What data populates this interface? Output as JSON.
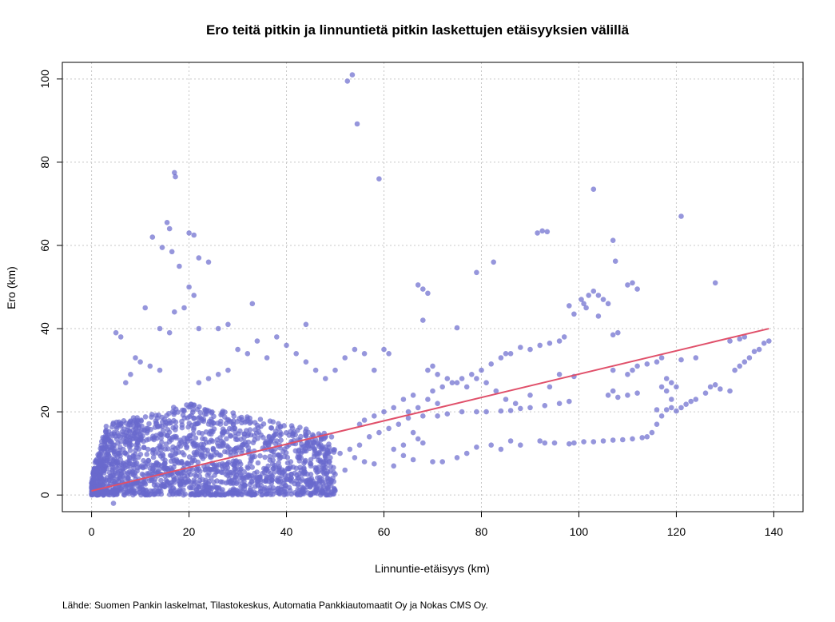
{
  "title": "Ero teitä pitkin ja linnuntietä pitkin laskettujen etäisyyksien välillä",
  "source": "Lähde: Suomen Pankin laskelmat, Tilastokeskus, Automatia Pankkiautomaatit Oy ja Nokas CMS Oy.",
  "colors": {
    "points": "#6a6acd",
    "trend": "#e0506a"
  },
  "chart_data": {
    "type": "scatter",
    "xlabel": "Linnuntie-etäisyys (km)",
    "ylabel": "Ero (km)",
    "xlim": [
      -6,
      146
    ],
    "ylim": [
      -4,
      104
    ],
    "xticks": [
      0,
      20,
      40,
      60,
      80,
      100,
      120,
      140
    ],
    "yticks": [
      0,
      20,
      40,
      60,
      80,
      100
    ],
    "grid": true,
    "trend_line": {
      "x": [
        0,
        139
      ],
      "y": [
        1,
        40
      ]
    },
    "dense_cloud": {
      "x_range": [
        0,
        50
      ],
      "y_range": [
        0,
        22
      ],
      "note_count": 1800
    },
    "points": [
      [
        52.5,
        99.5
      ],
      [
        53.5,
        101
      ],
      [
        54.5,
        89.2
      ],
      [
        59,
        76
      ],
      [
        17,
        77.5
      ],
      [
        17.2,
        76.5
      ],
      [
        12.5,
        62
      ],
      [
        14.5,
        59.5
      ],
      [
        16.5,
        58.5
      ],
      [
        15.5,
        65.5
      ],
      [
        16,
        64
      ],
      [
        20,
        63
      ],
      [
        21,
        62.5
      ],
      [
        18,
        55
      ],
      [
        22,
        57
      ],
      [
        24,
        56
      ],
      [
        20,
        50
      ],
      [
        19,
        45
      ],
      [
        17,
        44
      ],
      [
        21,
        48
      ],
      [
        33,
        46
      ],
      [
        11,
        45
      ],
      [
        14,
        40
      ],
      [
        16,
        39
      ],
      [
        22,
        40
      ],
      [
        26,
        40
      ],
      [
        28,
        41
      ],
      [
        44,
        41
      ],
      [
        38,
        38
      ],
      [
        40,
        36
      ],
      [
        42,
        34
      ],
      [
        44,
        32
      ],
      [
        46,
        30
      ],
      [
        48,
        28
      ],
      [
        50,
        30
      ],
      [
        52,
        33
      ],
      [
        54,
        35
      ],
      [
        56,
        34
      ],
      [
        58,
        30
      ],
      [
        60,
        35
      ],
      [
        61,
        34
      ],
      [
        5,
        39
      ],
      [
        6,
        38
      ],
      [
        67,
        50.5
      ],
      [
        68,
        49.5
      ],
      [
        69,
        48.5
      ],
      [
        68,
        42
      ],
      [
        75,
        40.2
      ],
      [
        79,
        53.5
      ],
      [
        82.5,
        56
      ],
      [
        91.5,
        63
      ],
      [
        92.5,
        63.5
      ],
      [
        93.5,
        63.3
      ],
      [
        103,
        73.5
      ],
      [
        107,
        61.2
      ],
      [
        107.5,
        56.2
      ],
      [
        110,
        50.5
      ],
      [
        111,
        51
      ],
      [
        112,
        49.5
      ],
      [
        121,
        67
      ],
      [
        128,
        51
      ],
      [
        100.5,
        47
      ],
      [
        101,
        46
      ],
      [
        101.5,
        45
      ],
      [
        102,
        48
      ],
      [
        103,
        49
      ],
      [
        104,
        48
      ],
      [
        105,
        47
      ],
      [
        104,
        43
      ],
      [
        98,
        45.5
      ],
      [
        99,
        43.5
      ],
      [
        97,
        38
      ],
      [
        96,
        37
      ],
      [
        94,
        36.5
      ],
      [
        92,
        36
      ],
      [
        90,
        35
      ],
      [
        86,
        34
      ],
      [
        84,
        33
      ],
      [
        82,
        31.5
      ],
      [
        80,
        30
      ],
      [
        78,
        29
      ],
      [
        76,
        28
      ],
      [
        74,
        27
      ],
      [
        72,
        26
      ],
      [
        70,
        25
      ],
      [
        69,
        30
      ],
      [
        70,
        31
      ],
      [
        71,
        29
      ],
      [
        66,
        24
      ],
      [
        64,
        23
      ],
      [
        62,
        21
      ],
      [
        60,
        20
      ],
      [
        58,
        19
      ],
      [
        56,
        18
      ],
      [
        55,
        17
      ],
      [
        65,
        18.5
      ],
      [
        68,
        19
      ],
      [
        71,
        19
      ],
      [
        73,
        19.5
      ],
      [
        76,
        20
      ],
      [
        79,
        20
      ],
      [
        81,
        20
      ],
      [
        84,
        20.2
      ],
      [
        86,
        20.3
      ],
      [
        88,
        20.8
      ],
      [
        90,
        21
      ],
      [
        93,
        21.5
      ],
      [
        96,
        22
      ],
      [
        98,
        22.5
      ],
      [
        92,
        13
      ],
      [
        93,
        12.5
      ],
      [
        95,
        12.5
      ],
      [
        98,
        12.3
      ],
      [
        99,
        12.5
      ],
      [
        101,
        12.8
      ],
      [
        103,
        12.8
      ],
      [
        105,
        13
      ],
      [
        107,
        13.2
      ],
      [
        109,
        13.3
      ],
      [
        111,
        13.5
      ],
      [
        113,
        13.8
      ],
      [
        114,
        14
      ],
      [
        115,
        15
      ],
      [
        116,
        17
      ],
      [
        117,
        19
      ],
      [
        118,
        20.5
      ],
      [
        119,
        21
      ],
      [
        120,
        20.2
      ],
      [
        121,
        21
      ],
      [
        122,
        21.8
      ],
      [
        123,
        22.5
      ],
      [
        124,
        23
      ],
      [
        126,
        24.5
      ],
      [
        127,
        26
      ],
      [
        128,
        26.5
      ],
      [
        129,
        25.5
      ],
      [
        131,
        25
      ],
      [
        132,
        30
      ],
      [
        133,
        31
      ],
      [
        134,
        32
      ],
      [
        135,
        33
      ],
      [
        136,
        34.5
      ],
      [
        137,
        35
      ],
      [
        138,
        36.5
      ],
      [
        139,
        37
      ],
      [
        131,
        37
      ],
      [
        133,
        37.5
      ],
      [
        134,
        38
      ],
      [
        107,
        30
      ],
      [
        110,
        29
      ],
      [
        112,
        31
      ],
      [
        114,
        31.5
      ],
      [
        116,
        32
      ],
      [
        117,
        33
      ],
      [
        118,
        28
      ],
      [
        119,
        27
      ],
      [
        120,
        26
      ],
      [
        121,
        32.5
      ],
      [
        124,
        33
      ],
      [
        106,
        24
      ],
      [
        107,
        25
      ],
      [
        108,
        23.5
      ],
      [
        110,
        24
      ],
      [
        112,
        24.5
      ],
      [
        117,
        26
      ],
      [
        118,
        25
      ],
      [
        119,
        23
      ],
      [
        116,
        20.5
      ],
      [
        66,
        15
      ],
      [
        67,
        13.5
      ],
      [
        68,
        12.5
      ],
      [
        64,
        12
      ],
      [
        62,
        11
      ],
      [
        70,
        8
      ],
      [
        72,
        8
      ],
      [
        75,
        9
      ],
      [
        77,
        10
      ],
      [
        79,
        11.5
      ],
      [
        82,
        12
      ],
      [
        84,
        11
      ],
      [
        86,
        13
      ],
      [
        88,
        12
      ],
      [
        66,
        8.5
      ],
      [
        64,
        9.5
      ],
      [
        62,
        7
      ],
      [
        58,
        7.5
      ],
      [
        56,
        8
      ],
      [
        54,
        9
      ],
      [
        52,
        6
      ],
      [
        50,
        5
      ],
      [
        85,
        34
      ],
      [
        88,
        35.5
      ],
      [
        107,
        38.5
      ],
      [
        108,
        39
      ],
      [
        106,
        46
      ],
      [
        111,
        30
      ],
      [
        96,
        29
      ],
      [
        99,
        28.5
      ],
      [
        94,
        26
      ],
      [
        90,
        24
      ],
      [
        87,
        22
      ],
      [
        85,
        23
      ],
      [
        83,
        25
      ],
      [
        81,
        27
      ],
      [
        79,
        28
      ],
      [
        77,
        26
      ],
      [
        75,
        27
      ],
      [
        73,
        28
      ],
      [
        71,
        22
      ],
      [
        69,
        23
      ],
      [
        67,
        21
      ],
      [
        65,
        20
      ],
      [
        63,
        17
      ],
      [
        61,
        16
      ],
      [
        59,
        15
      ],
      [
        57,
        14
      ],
      [
        55,
        12
      ],
      [
        53,
        11
      ],
      [
        51,
        10
      ],
      [
        49,
        9
      ],
      [
        47,
        8
      ],
      [
        45,
        7
      ],
      [
        43,
        6
      ],
      [
        41,
        5
      ],
      [
        4.5,
        -2
      ],
      [
        2,
        1
      ],
      [
        30,
        35
      ],
      [
        32,
        34
      ],
      [
        34,
        37
      ],
      [
        36,
        33
      ],
      [
        28,
        30
      ],
      [
        24,
        28
      ],
      [
        26,
        29
      ],
      [
        22,
        27
      ],
      [
        9,
        33
      ],
      [
        10,
        32
      ],
      [
        12,
        31
      ],
      [
        14,
        30
      ],
      [
        8,
        29
      ],
      [
        7,
        27
      ]
    ]
  }
}
